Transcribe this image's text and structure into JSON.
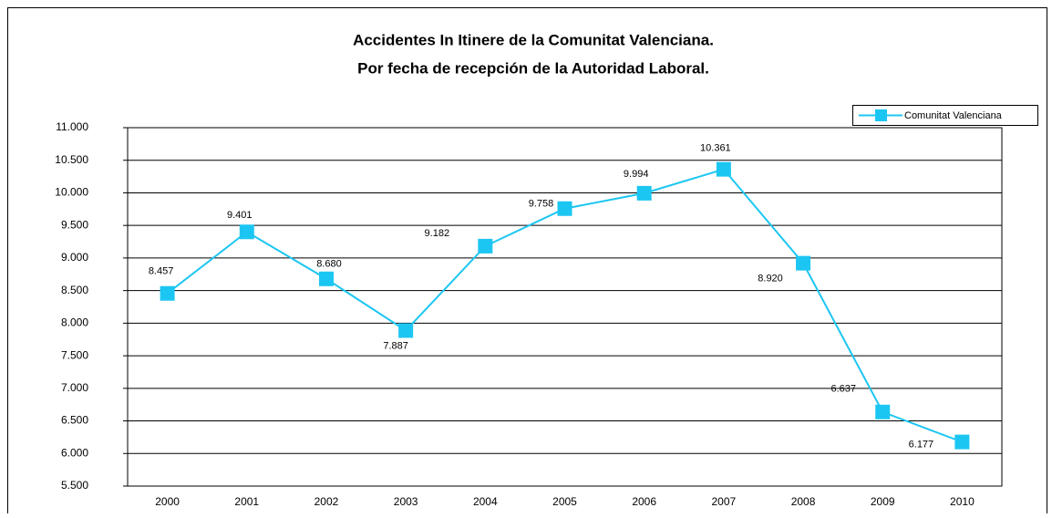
{
  "chart_data": {
    "type": "line",
    "title": "Accidentes In Itinere de la Comunitat Valenciana.",
    "subtitle": "Por fecha de recepción de la Autoridad Laboral.",
    "categories": [
      "2000",
      "2001",
      "2002",
      "2003",
      "2004",
      "2005",
      "2006",
      "2007",
      "2008",
      "2009",
      "2010"
    ],
    "series": [
      {
        "name": "Comunitat Valenciana",
        "color": "#1cc6f2",
        "values": [
          8457,
          9401,
          8680,
          7887,
          9182,
          9758,
          9994,
          10361,
          8920,
          6637,
          6177
        ],
        "value_labels": [
          "8.457",
          "9.401",
          "8.680",
          "7.887",
          "9.182",
          "9.758",
          "9.994",
          "10.361",
          "8.920",
          "6.637",
          "6.177"
        ]
      }
    ],
    "ylim": [
      5500,
      11000
    ],
    "yticks": [
      {
        "value": 5500,
        "label": "5.500"
      },
      {
        "value": 6000,
        "label": "6.000"
      },
      {
        "value": 6500,
        "label": "6.500"
      },
      {
        "value": 7000,
        "label": "7.000"
      },
      {
        "value": 7500,
        "label": "7.500"
      },
      {
        "value": 8000,
        "label": "8.000"
      },
      {
        "value": 8500,
        "label": "8.500"
      },
      {
        "value": 9000,
        "label": "9.000"
      },
      {
        "value": 9500,
        "label": "9.500"
      },
      {
        "value": 10000,
        "label": "10.000"
      },
      {
        "value": 10500,
        "label": "10.500"
      },
      {
        "value": 11000,
        "label": "11.000"
      }
    ],
    "grid": true,
    "legend": "top-right"
  }
}
